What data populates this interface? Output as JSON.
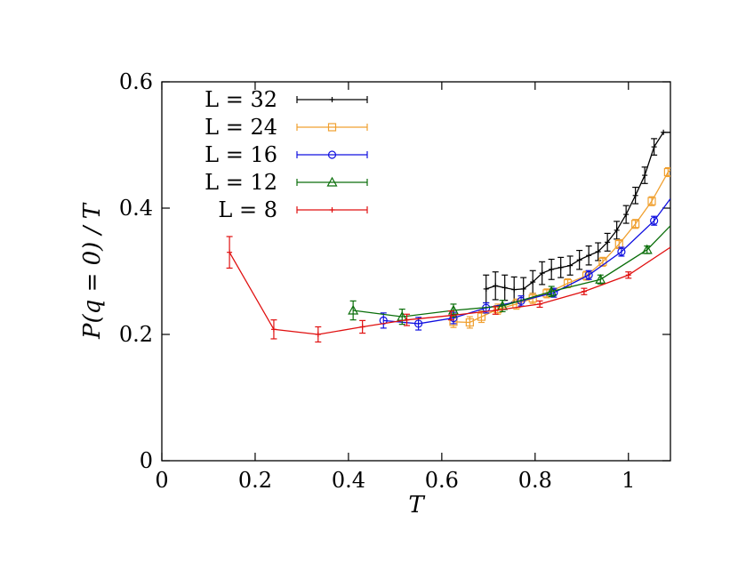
{
  "chart_data": {
    "type": "line",
    "xlabel": "T",
    "ylabel": "P(q = 0) / T",
    "xlim": [
      0,
      1.09
    ],
    "ylim": [
      0,
      0.6
    ],
    "xticks": [
      0,
      0.2,
      0.4,
      0.6,
      0.8,
      1
    ],
    "xtick_labels": [
      "0",
      "0.2",
      "0.4",
      "0.6",
      "0.8",
      "1"
    ],
    "yticks": [
      0,
      0.2,
      0.4,
      0.6
    ],
    "ytick_labels": [
      "0",
      "0.2",
      "0.4",
      "0.6"
    ],
    "legend_position": "top-left",
    "series": [
      {
        "name": "L = 32",
        "color": "#000000",
        "marker": "plus",
        "x": [
          0.695,
          0.715,
          0.735,
          0.755,
          0.775,
          0.795,
          0.815,
          0.835,
          0.855,
          0.875,
          0.895,
          0.915,
          0.935,
          0.955,
          0.975,
          0.995,
          1.015,
          1.035,
          1.055,
          1.075,
          1.09
        ],
        "y": [
          0.272,
          0.277,
          0.274,
          0.271,
          0.272,
          0.283,
          0.297,
          0.303,
          0.306,
          0.309,
          0.318,
          0.325,
          0.331,
          0.346,
          0.365,
          0.39,
          0.42,
          0.452,
          0.497,
          0.52,
          0.52
        ],
        "err": [
          0.022,
          0.022,
          0.02,
          0.02,
          0.018,
          0.018,
          0.018,
          0.016,
          0.016,
          0.015,
          0.015,
          0.015,
          0.014,
          0.014,
          0.014,
          0.014,
          0.013,
          0.013,
          0.013,
          0,
          0
        ]
      },
      {
        "name": "L = 24",
        "color": "#f0a030",
        "marker": "square",
        "x": [
          0.625,
          0.66,
          0.685,
          0.72,
          0.76,
          0.795,
          0.825,
          0.87,
          0.91,
          0.945,
          0.98,
          1.015,
          1.05,
          1.085,
          1.09
        ],
        "y": [
          0.22,
          0.219,
          0.228,
          0.24,
          0.248,
          0.257,
          0.265,
          0.281,
          0.293,
          0.315,
          0.343,
          0.375,
          0.411,
          0.457,
          0.46
        ],
        "err": [
          0.009,
          0.009,
          0.009,
          0.008,
          0.008,
          0.008,
          0.007,
          0.007,
          0.007,
          0.007,
          0.007,
          0.007,
          0.007,
          0.007,
          0
        ]
      },
      {
        "name": "L = 16",
        "color": "#1010e0",
        "marker": "circle",
        "x": [
          0.475,
          0.55,
          0.625,
          0.695,
          0.77,
          0.84,
          0.915,
          0.985,
          1.055,
          1.09
        ],
        "y": [
          0.222,
          0.217,
          0.226,
          0.242,
          0.253,
          0.266,
          0.294,
          0.331,
          0.38,
          0.415
        ],
        "err": [
          0.012,
          0.01,
          0.009,
          0.008,
          0.008,
          0.007,
          0.007,
          0.007,
          0.007,
          0
        ]
      },
      {
        "name": "L = 12",
        "color": "#0a6e0a",
        "marker": "triangle",
        "x": [
          0.41,
          0.515,
          0.625,
          0.73,
          0.835,
          0.94,
          1.04,
          1.09
        ],
        "y": [
          0.238,
          0.228,
          0.238,
          0.245,
          0.268,
          0.287,
          0.334,
          0.372
        ],
        "err": [
          0.015,
          0.012,
          0.01,
          0.009,
          0.008,
          0.007,
          0.006,
          0
        ]
      },
      {
        "name": "L = 8",
        "color": "#e01010",
        "marker": "plus",
        "x": [
          0.145,
          0.24,
          0.335,
          0.43,
          0.525,
          0.62,
          0.715,
          0.81,
          0.905,
          1.0,
          1.09
        ],
        "y": [
          0.33,
          0.208,
          0.2,
          0.212,
          0.223,
          0.23,
          0.238,
          0.248,
          0.268,
          0.294,
          0.338
        ],
        "err": [
          0.025,
          0.015,
          0.012,
          0.01,
          0.009,
          0.007,
          0.006,
          0.005,
          0.005,
          0.005,
          0
        ]
      }
    ]
  }
}
